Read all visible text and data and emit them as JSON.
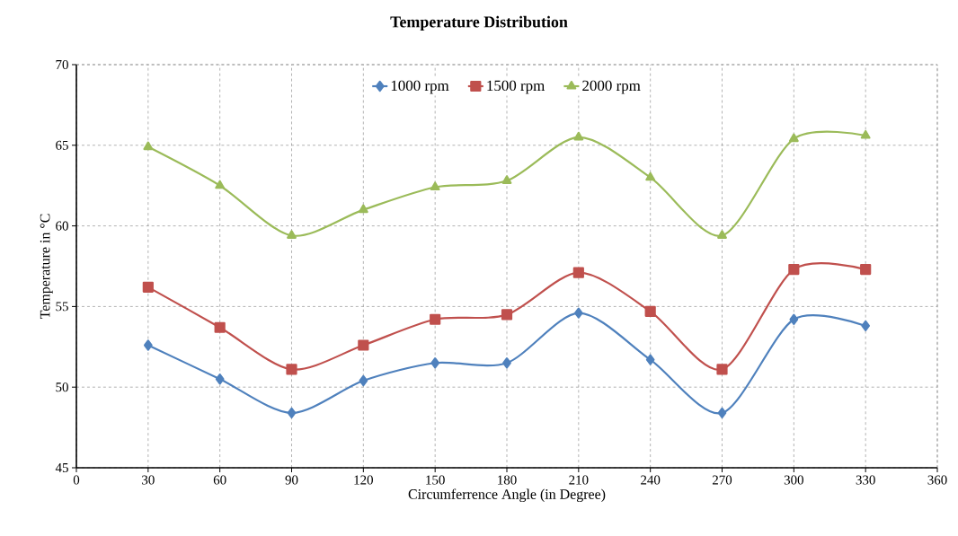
{
  "chart_data": {
    "type": "line",
    "title": "Temperature Distribution",
    "xlabel": "Circumferrence Angle   (in Degree)",
    "ylabel": "Temperature in  °C",
    "x": [
      30,
      60,
      90,
      120,
      150,
      180,
      210,
      240,
      270,
      300,
      330
    ],
    "series": [
      {
        "name": "1000 rpm",
        "color": "#4f81bd",
        "marker": "diamond",
        "values": [
          52.6,
          50.5,
          48.4,
          50.4,
          51.5,
          51.5,
          54.6,
          51.7,
          48.4,
          54.2,
          53.8
        ]
      },
      {
        "name": "1500 rpm",
        "color": "#c0504d",
        "marker": "square",
        "values": [
          56.2,
          53.7,
          51.1,
          52.6,
          54.2,
          54.5,
          57.1,
          54.7,
          51.1,
          57.3,
          57.3
        ]
      },
      {
        "name": "2000 rpm",
        "color": "#9bbb59",
        "marker": "triangle",
        "values": [
          64.9,
          62.5,
          59.4,
          61.0,
          62.4,
          62.8,
          65.5,
          63.0,
          59.4,
          65.4,
          65.6
        ]
      }
    ],
    "xlim": [
      0,
      360
    ],
    "xticks": [
      0,
      30,
      60,
      90,
      120,
      150,
      180,
      210,
      240,
      270,
      300,
      330,
      360
    ],
    "ylim": [
      45,
      70
    ],
    "yticks": [
      45,
      50,
      55,
      60,
      65,
      70
    ],
    "grid": true,
    "legend": "top",
    "line_style": "solid"
  }
}
